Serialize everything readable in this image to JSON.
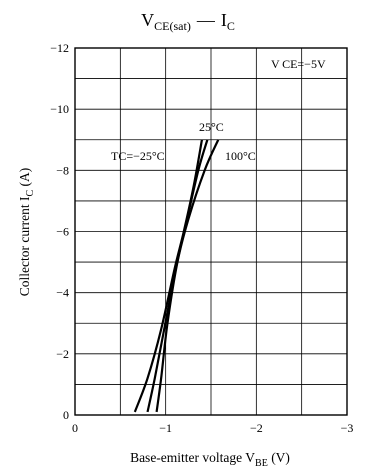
{
  "chart_data": {
    "type": "line",
    "title": {
      "main": "V",
      "main_sub": "CE(sat)",
      "sep": "—",
      "second": "I",
      "second_sub": "C"
    },
    "xlabel": {
      "text": "Base-emitter voltage  V",
      "sub": "BE",
      "unit": "  (V)"
    },
    "ylabel": {
      "text": "Collector current  I",
      "sub": "C",
      "unit": "  (A)"
    },
    "xlim": [
      0,
      -3
    ],
    "ylim": [
      0,
      -12
    ],
    "xticks": [
      0,
      -1,
      -2,
      -3
    ],
    "xtick_labels": [
      "0",
      "−1",
      "−2",
      "−3"
    ],
    "yticks": [
      0,
      -2,
      -4,
      -6,
      -8,
      -10,
      -12
    ],
    "ytick_labels": [
      "0",
      "−2",
      "−4",
      "−6",
      "−8",
      "−10",
      "−12"
    ],
    "grid_x_step": -0.5,
    "grid_y_step": -1,
    "grid": true,
    "condition_label": "V CE=−5V",
    "series": [
      {
        "name": "TC=−25°C",
        "points": [
          [
            -0.66,
            -0.1
          ],
          [
            -0.8,
            -1.2
          ],
          [
            -0.95,
            -2.8
          ],
          [
            -1.1,
            -4.8
          ],
          [
            -1.2,
            -6.0
          ],
          [
            -1.31,
            -7.5
          ],
          [
            -1.4,
            -9.0
          ]
        ]
      },
      {
        "name": "25°C",
        "points": [
          [
            -0.8,
            -0.1
          ],
          [
            -0.88,
            -1.2
          ],
          [
            -0.99,
            -2.9
          ],
          [
            -1.12,
            -4.9
          ],
          [
            -1.22,
            -6.2
          ],
          [
            -1.36,
            -8.0
          ],
          [
            -1.46,
            -9.0
          ]
        ]
      },
      {
        "name": "100°C",
        "points": [
          [
            -0.9,
            -0.1
          ],
          [
            -0.95,
            -1.2
          ],
          [
            -1.02,
            -3.0
          ],
          [
            -1.13,
            -5.0
          ],
          [
            -1.25,
            -6.4
          ],
          [
            -1.43,
            -8.0
          ],
          [
            -1.58,
            -9.0
          ]
        ]
      }
    ],
    "annotations": [
      {
        "text": "TC=−25°C",
        "series": 0
      },
      {
        "text": "25°C",
        "series": 1
      },
      {
        "text": "100°C",
        "series": 2
      }
    ]
  }
}
